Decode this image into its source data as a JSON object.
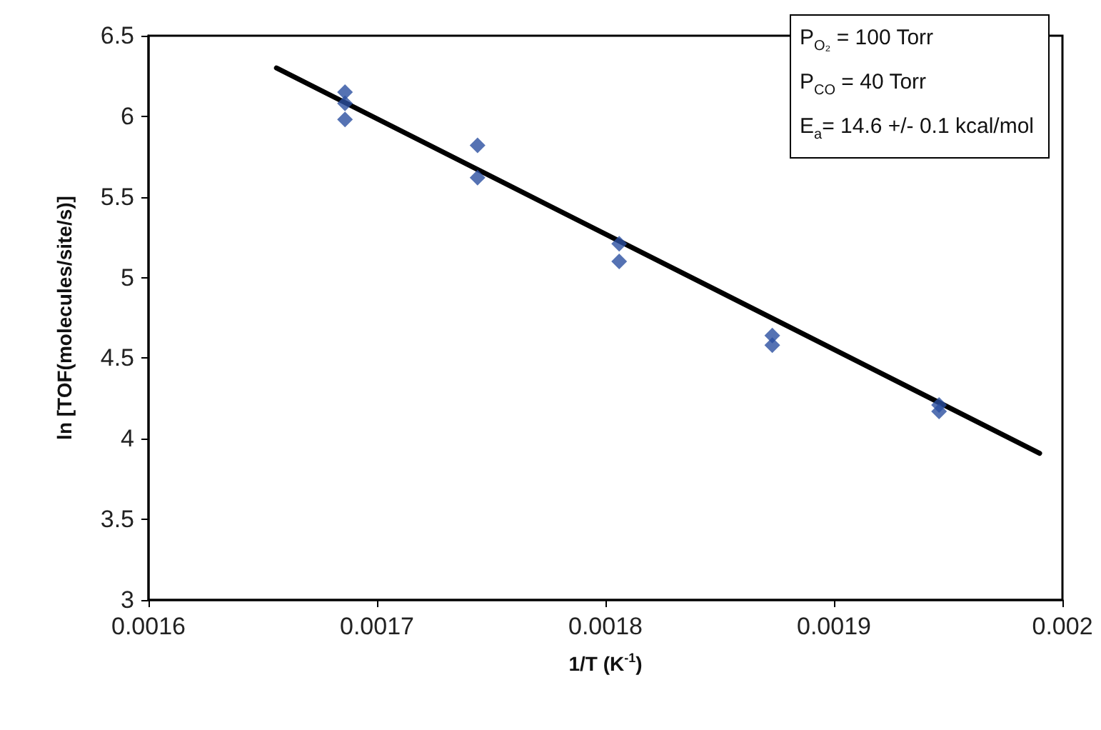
{
  "chart_data": {
    "type": "scatter",
    "xlabel": "1/T (K$^{-1}$)",
    "ylabel": "ln [TOF(molecules/site/s)]",
    "xlim": [
      0.0016,
      0.002
    ],
    "xticks": [
      0.0016,
      0.0017,
      0.0018,
      0.0019,
      0.002
    ],
    "ylim": [
      3,
      6.5
    ],
    "yticks": [
      3,
      3.5,
      4,
      4.5,
      5,
      5.5,
      6,
      6.5
    ],
    "grid": false,
    "marker": "diamond",
    "annotations": [
      "P$_{O₂}$ = 100 Torr",
      "P$_{CO}$ = 40 Torr",
      "E$_{a}$= 14.6 +/- 0.1 kcal/mol"
    ],
    "series": [
      {
        "color": "#2a4fa0",
        "x": [
          0.001686,
          0.001686,
          0.001686,
          0.001744,
          0.001744,
          0.001806,
          0.001806,
          0.001873,
          0.001873,
          0.001946,
          0.001946
        ],
        "values": [
          6.15,
          6.08,
          5.98,
          5.82,
          5.62,
          5.21,
          5.1,
          4.64,
          4.58,
          4.21,
          4.17
        ]
      },
      {
        "type": "line",
        "color": "#000000",
        "marker": "none",
        "line_style": "solid",
        "x": [
          0.001656,
          0.00199
        ],
        "values": [
          6.3,
          3.91
        ]
      }
    ]
  }
}
